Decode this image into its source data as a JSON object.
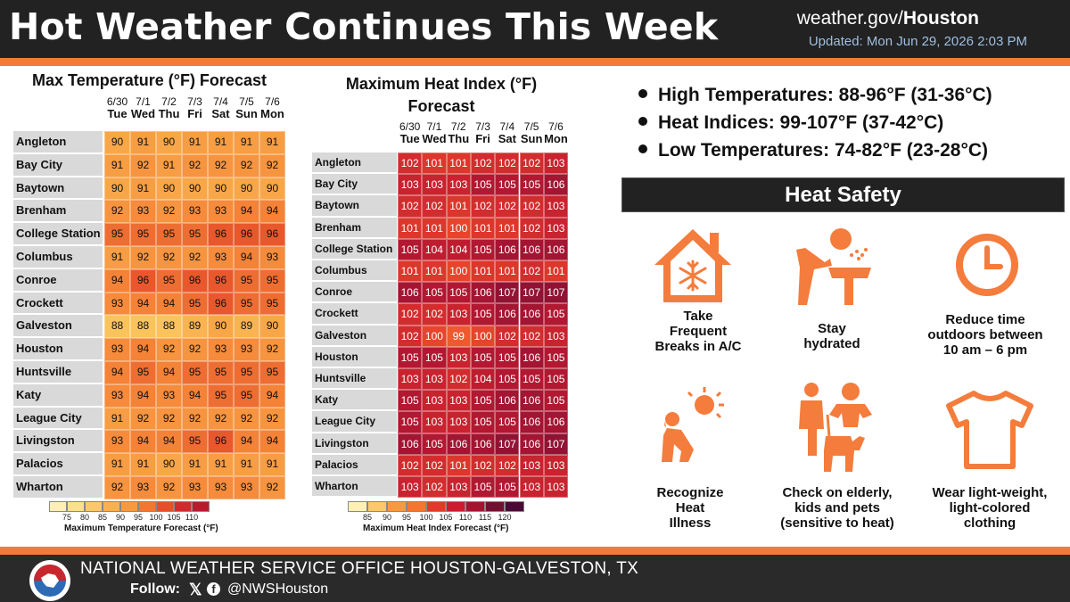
{
  "header": {
    "title": "Hot Weather Continues This Week",
    "site_prefix": "weather.gov/",
    "site_bold": "Houston",
    "updated": "Updated: Mon Jun 29, 2026 2:03 PM"
  },
  "days": [
    {
      "date": "6/30",
      "dow": "Tue"
    },
    {
      "date": "7/1",
      "dow": "Wed"
    },
    {
      "date": "7/2",
      "dow": "Thu"
    },
    {
      "date": "7/3",
      "dow": "Fri"
    },
    {
      "date": "7/4",
      "dow": "Sat"
    },
    {
      "date": "7/5",
      "dow": "Sun"
    },
    {
      "date": "7/6",
      "dow": "Mon"
    }
  ],
  "cities": [
    "Angleton",
    "Bay City",
    "Baytown",
    "Brenham",
    "College Station",
    "Columbus",
    "Conroe",
    "Crockett",
    "Galveston",
    "Houston",
    "Huntsville",
    "Katy",
    "League City",
    "Livingston",
    "Palacios",
    "Wharton"
  ],
  "max_temp": {
    "title": "Max Temperature (°F) Forecast",
    "values": [
      [
        90,
        91,
        90,
        91,
        91,
        91,
        91
      ],
      [
        91,
        92,
        91,
        92,
        92,
        92,
        92
      ],
      [
        90,
        91,
        90,
        90,
        90,
        90,
        90
      ],
      [
        92,
        93,
        92,
        93,
        93,
        94,
        94
      ],
      [
        95,
        95,
        95,
        95,
        96,
        96,
        96
      ],
      [
        91,
        92,
        92,
        92,
        93,
        94,
        93
      ],
      [
        94,
        96,
        95,
        96,
        96,
        95,
        95
      ],
      [
        93,
        94,
        94,
        95,
        96,
        95,
        95
      ],
      [
        88,
        88,
        88,
        89,
        90,
        89,
        90
      ],
      [
        93,
        94,
        92,
        92,
        93,
        93,
        92
      ],
      [
        94,
        95,
        94,
        95,
        95,
        95,
        95
      ],
      [
        93,
        94,
        93,
        94,
        95,
        95,
        94
      ],
      [
        91,
        92,
        92,
        92,
        92,
        92,
        92
      ],
      [
        93,
        94,
        94,
        95,
        96,
        94,
        94
      ],
      [
        91,
        91,
        90,
        91,
        91,
        91,
        91
      ],
      [
        92,
        93,
        92,
        93,
        93,
        93,
        92
      ]
    ],
    "scale": {
      "labels": [
        "75",
        "80",
        "85",
        "90",
        "95",
        "100",
        "105",
        "110"
      ],
      "colors": [
        "#fef0b4",
        "#fde08a",
        "#fcc868",
        "#fbb04e",
        "#f89a3c",
        "#f2782d",
        "#e5502a",
        "#cf2c2c",
        "#b31e2d"
      ],
      "title": "Maximum Temperature Forecast (°F)"
    }
  },
  "heat_index": {
    "title_line1": "Maximum Heat Index (°F)",
    "title_line2": "Forecast",
    "values": [
      [
        102,
        101,
        101,
        102,
        102,
        102,
        103
      ],
      [
        103,
        103,
        103,
        105,
        105,
        105,
        106
      ],
      [
        102,
        102,
        101,
        102,
        102,
        102,
        103
      ],
      [
        101,
        101,
        100,
        101,
        101,
        102,
        103
      ],
      [
        105,
        104,
        104,
        105,
        106,
        106,
        106
      ],
      [
        101,
        101,
        100,
        101,
        101,
        102,
        101
      ],
      [
        106,
        105,
        105,
        106,
        107,
        107,
        107
      ],
      [
        102,
        102,
        103,
        105,
        106,
        106,
        105
      ],
      [
        102,
        100,
        99,
        100,
        102,
        102,
        103
      ],
      [
        105,
        105,
        103,
        105,
        105,
        106,
        105
      ],
      [
        103,
        103,
        102,
        104,
        105,
        105,
        105
      ],
      [
        105,
        103,
        103,
        105,
        106,
        106,
        105
      ],
      [
        105,
        103,
        103,
        105,
        105,
        106,
        106
      ],
      [
        106,
        105,
        106,
        106,
        107,
        106,
        107
      ],
      [
        102,
        102,
        101,
        102,
        102,
        103,
        103
      ],
      [
        103,
        102,
        103,
        105,
        105,
        103,
        103
      ]
    ],
    "scale": {
      "labels": [
        "85",
        "90",
        "95",
        "100",
        "105",
        "110",
        "115",
        "120"
      ],
      "colors": [
        "#fef0b4",
        "#fcc868",
        "#f89a3c",
        "#f2782d",
        "#e03a2a",
        "#c81e2e",
        "#a3142f",
        "#731030",
        "#4a0a35"
      ],
      "title": "Maximum Heat Index Forecast (°F)"
    }
  },
  "bullets": [
    "High Temperatures: 88-96°F (31-36°C)",
    "Heat Indices: 99-107°F (37-42°C)",
    "Low Temperatures: 74-82°F (23-28°C)"
  ],
  "safety": {
    "title": "Heat Safety",
    "tips": [
      {
        "icon": "house-snowflake-icon",
        "lines": [
          "Take",
          "Frequent",
          "Breaks in A/C"
        ]
      },
      {
        "icon": "water-fountain-icon",
        "lines": [
          "Stay",
          "hydrated"
        ]
      },
      {
        "icon": "clock-icon",
        "lines": [
          "Reduce time",
          "outdoors between",
          "10 am – 6 pm"
        ]
      },
      {
        "icon": "heat-illness-icon",
        "lines": [
          "Recognize",
          "Heat",
          "Illness"
        ]
      },
      {
        "icon": "family-pets-icon",
        "lines": [
          "Check on elderly,",
          "kids and pets",
          "(sensitive to heat)"
        ]
      },
      {
        "icon": "tshirt-icon",
        "lines": [
          "Wear light-weight,",
          "light-colored",
          "clothing"
        ]
      }
    ],
    "icon_color": "#f47c3c"
  },
  "footer": {
    "office": "NATIONAL WEATHER SERVICE OFFICE HOUSTON-GALVESTON, TX",
    "follow": "Follow:",
    "x_glyph": "𝕏",
    "fb_glyph": "f",
    "handle": "@NWSHouston"
  }
}
